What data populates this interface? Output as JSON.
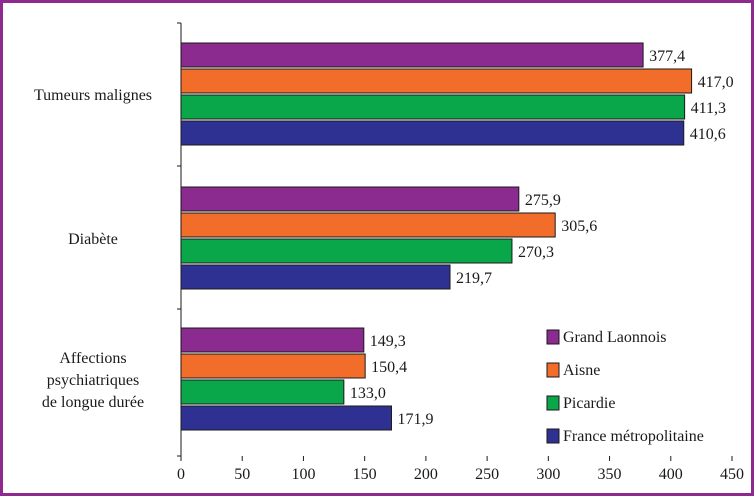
{
  "colors": {
    "frame": "#8e2a8e",
    "grand_laonnois": "#8b2a8f",
    "aisne": "#f26c2a",
    "picardie": "#0aa64a",
    "france": "#2e3192"
  },
  "chart_data": {
    "type": "bar",
    "orientation": "horizontal",
    "categories": [
      "Tumeurs malignes",
      "Diabète",
      "Affections psychiatriques de longue durée"
    ],
    "category_lines": [
      [
        "Tumeurs malignes"
      ],
      [
        "Diabète"
      ],
      [
        "Affections",
        "psychiatriques",
        "de longue durée"
      ]
    ],
    "series": [
      {
        "name": "Grand Laonnois",
        "color": "#8b2a8f",
        "values": [
          377.4,
          275.9,
          149.3
        ],
        "labels": [
          "377,4",
          "275,9",
          "149,3"
        ]
      },
      {
        "name": "Aisne",
        "color": "#f26c2a",
        "values": [
          417.0,
          305.6,
          150.4
        ],
        "labels": [
          "417,0",
          "305,6",
          "150,4"
        ]
      },
      {
        "name": "Picardie",
        "color": "#0aa64a",
        "values": [
          411.3,
          270.3,
          133.0
        ],
        "labels": [
          "411,3",
          "270,3",
          "133,0"
        ]
      },
      {
        "name": "France métropolitaine",
        "color": "#2e3192",
        "values": [
          410.6,
          219.7,
          171.9
        ],
        "labels": [
          "410,6",
          "219,7",
          "171,9"
        ]
      }
    ],
    "xlim": [
      0,
      450
    ],
    "xticks": [
      0,
      50,
      100,
      150,
      200,
      250,
      300,
      350,
      400,
      450
    ],
    "grid": false,
    "legend": "bottom-right"
  }
}
